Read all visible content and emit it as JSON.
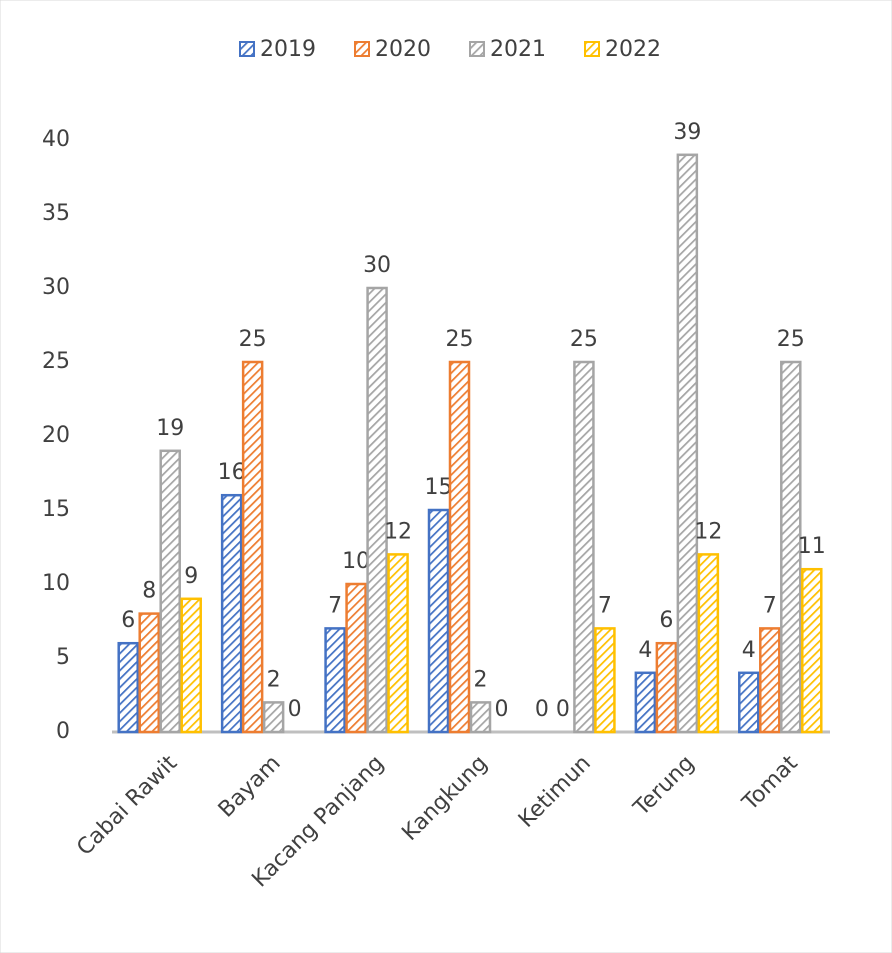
{
  "chart_data": {
    "type": "bar",
    "categories": [
      "Cabai Rawit",
      "Bayam",
      "Kacang Panjang",
      "Kangkung",
      "Ketimun",
      "Terung",
      "Tomat"
    ],
    "series": [
      {
        "name": "2019",
        "color": "#4472c4",
        "values": [
          6,
          16,
          7,
          15,
          0,
          4,
          4
        ]
      },
      {
        "name": "2020",
        "color": "#ed7d31",
        "values": [
          8,
          25,
          10,
          25,
          0,
          6,
          7
        ]
      },
      {
        "name": "2021",
        "color": "#a5a5a5",
        "values": [
          19,
          2,
          30,
          2,
          25,
          39,
          25
        ]
      },
      {
        "name": "2022",
        "color": "#ffc000",
        "values": [
          9,
          0,
          12,
          0,
          7,
          12,
          11
        ]
      }
    ],
    "ylim": [
      0,
      40
    ],
    "yticks": [
      0,
      5,
      10,
      15,
      20,
      25,
      30,
      35,
      40
    ],
    "grid": false,
    "legend": "top"
  }
}
